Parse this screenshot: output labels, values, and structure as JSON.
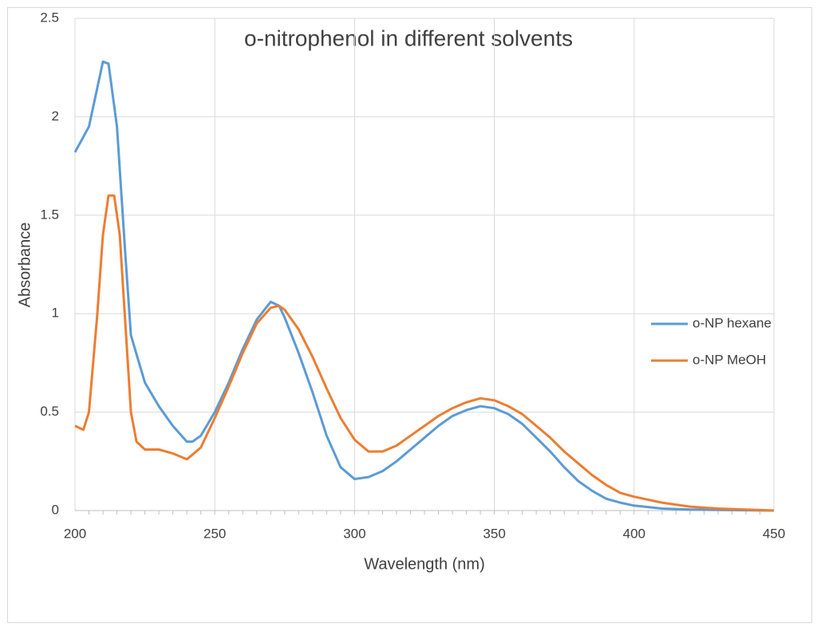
{
  "chart_data": {
    "type": "line",
    "title": "o-nitrophenol in different solvents",
    "x_label": "Wavelength (nm)",
    "y_label": "Absorbance",
    "xlim": [
      200,
      450
    ],
    "xticks": [
      200,
      250,
      300,
      350,
      400,
      450
    ],
    "ylim": [
      0,
      2.5
    ],
    "yticks": [
      0,
      0.5,
      1,
      1.5,
      2,
      2.5
    ],
    "grid": true,
    "legend": "right",
    "series": [
      {
        "name": "o-NP hexane",
        "color": "#5b9bd5",
        "x": [
          200,
          205,
          210,
          212,
          215,
          218,
          220,
          225,
          230,
          235,
          240,
          242,
          245,
          250,
          255,
          260,
          265,
          270,
          273,
          275,
          280,
          285,
          290,
          295,
          300,
          305,
          310,
          315,
          320,
          325,
          330,
          335,
          340,
          345,
          350,
          355,
          360,
          365,
          370,
          375,
          380,
          385,
          390,
          395,
          400,
          410,
          420,
          450
        ],
        "values": [
          1.82,
          1.95,
          2.28,
          2.27,
          1.95,
          1.3,
          0.89,
          0.65,
          0.53,
          0.43,
          0.35,
          0.35,
          0.38,
          0.5,
          0.65,
          0.82,
          0.97,
          1.06,
          1.04,
          0.98,
          0.8,
          0.6,
          0.38,
          0.22,
          0.16,
          0.17,
          0.2,
          0.25,
          0.31,
          0.37,
          0.43,
          0.48,
          0.51,
          0.53,
          0.52,
          0.49,
          0.44,
          0.37,
          0.3,
          0.22,
          0.15,
          0.1,
          0.06,
          0.04,
          0.025,
          0.01,
          0.005,
          0
        ]
      },
      {
        "name": "o-NP MeOH",
        "color": "#ed7d31",
        "x": [
          200,
          203,
          205,
          208,
          210,
          212,
          214,
          216,
          218,
          220,
          222,
          225,
          230,
          235,
          240,
          245,
          250,
          255,
          260,
          265,
          270,
          273,
          275,
          280,
          285,
          290,
          295,
          300,
          305,
          310,
          315,
          320,
          325,
          330,
          335,
          340,
          345,
          350,
          355,
          360,
          365,
          370,
          375,
          380,
          385,
          390,
          395,
          400,
          410,
          420,
          430,
          440,
          450
        ],
        "values": [
          0.43,
          0.41,
          0.5,
          1.0,
          1.4,
          1.6,
          1.6,
          1.4,
          0.95,
          0.5,
          0.35,
          0.31,
          0.31,
          0.29,
          0.26,
          0.32,
          0.47,
          0.63,
          0.8,
          0.95,
          1.03,
          1.04,
          1.02,
          0.92,
          0.78,
          0.62,
          0.47,
          0.36,
          0.3,
          0.3,
          0.33,
          0.38,
          0.43,
          0.48,
          0.52,
          0.55,
          0.57,
          0.56,
          0.53,
          0.49,
          0.43,
          0.37,
          0.3,
          0.24,
          0.18,
          0.13,
          0.09,
          0.07,
          0.04,
          0.02,
          0.01,
          0.005,
          0
        ]
      }
    ]
  }
}
